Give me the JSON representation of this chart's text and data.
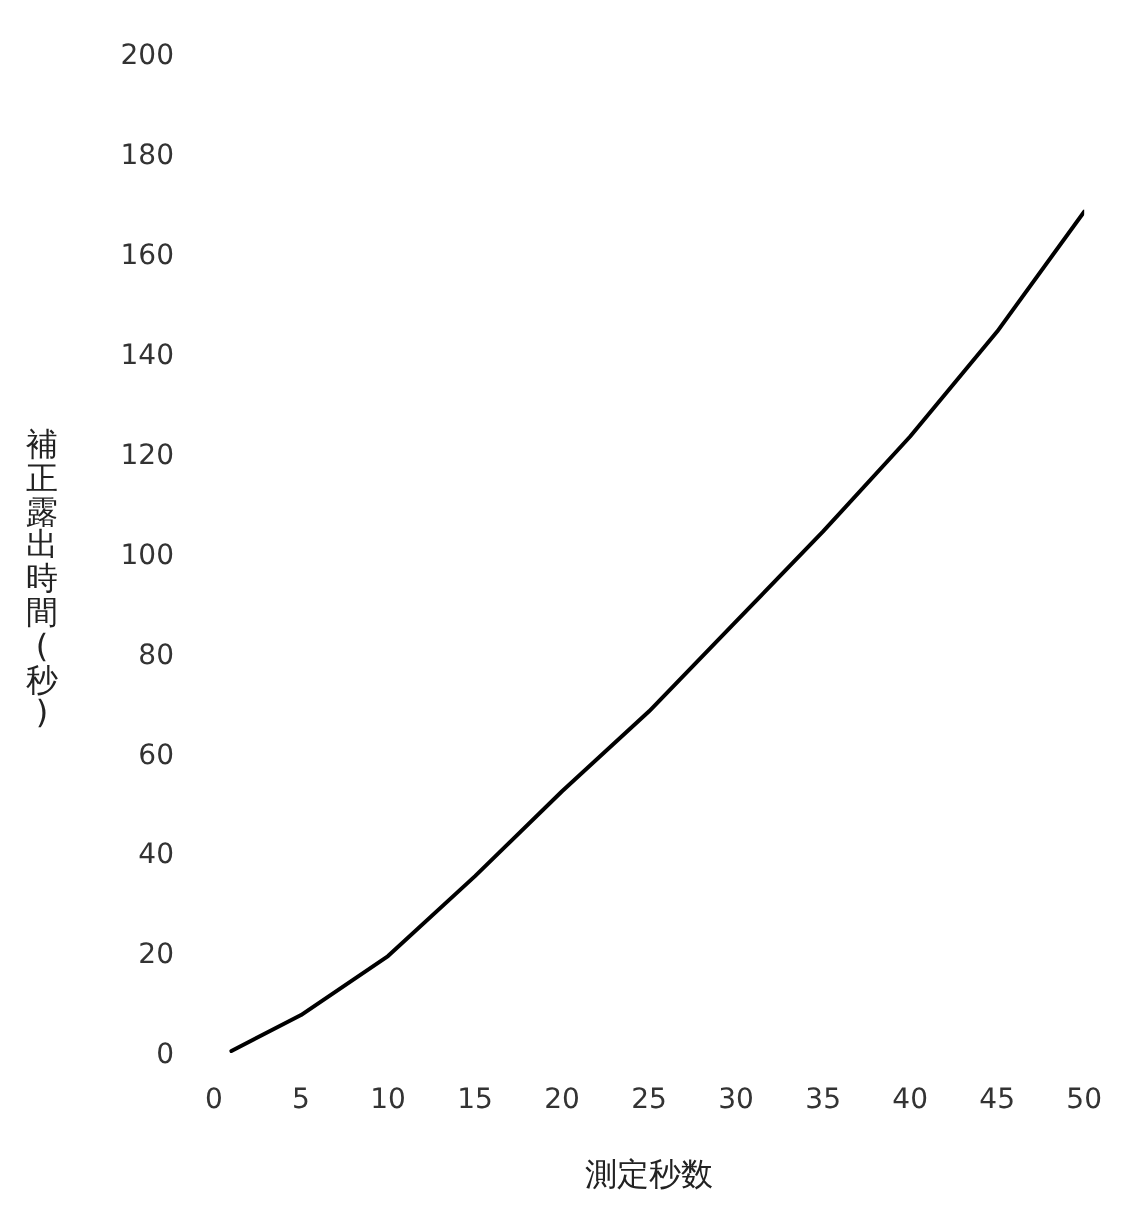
{
  "chart_data": {
    "type": "line",
    "xlabel": "測定秒数",
    "ylabel": "補正露出時間(秒)",
    "x": [
      1,
      5,
      10,
      15,
      20,
      25,
      30,
      35,
      40,
      45,
      50
    ],
    "series": [
      {
        "color": "#000000",
        "values": [
          1,
          8.2,
          20,
          36,
          53,
          69,
          87,
          105,
          124,
          145,
          169
        ]
      }
    ],
    "xlim": [
      0,
      50
    ],
    "xticks": [
      0,
      5,
      10,
      15,
      20,
      25,
      30,
      35,
      40,
      45,
      50
    ],
    "ylim": [
      0,
      200
    ],
    "yticks": [
      0,
      20,
      40,
      60,
      80,
      100,
      120,
      140,
      160,
      180,
      200
    ],
    "grid": false,
    "legend": false,
    "marker": "none",
    "line_style": "solid"
  }
}
